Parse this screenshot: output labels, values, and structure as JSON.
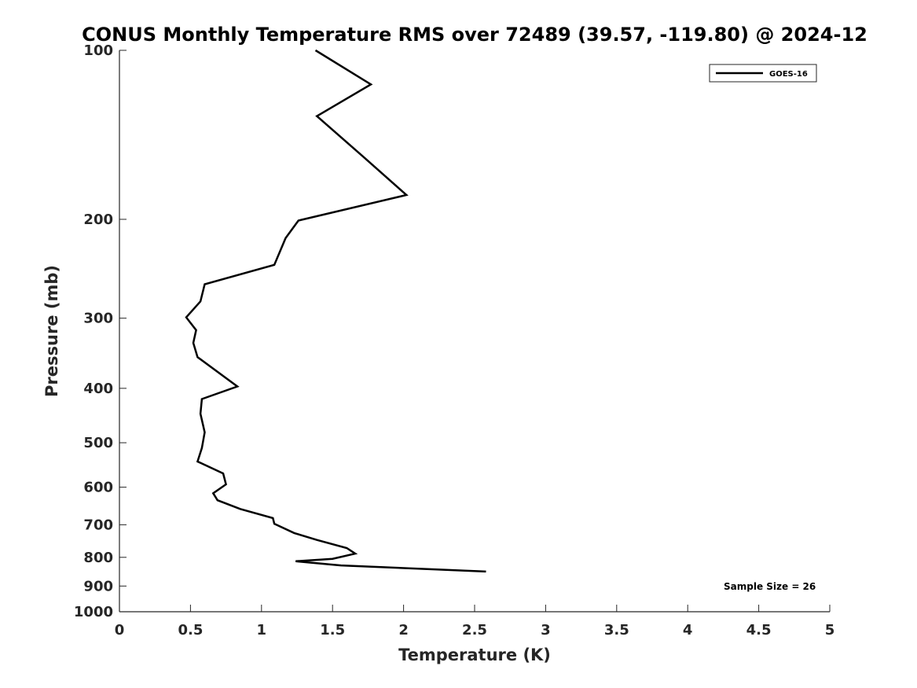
{
  "chart_data": {
    "type": "line",
    "title": "CONUS Monthly Temperature RMS over 72489 (39.57, -119.80) @ 2024-12",
    "xlabel": "Temperature (K)",
    "ylabel": "Pressure (mb)",
    "xlim": [
      0,
      5
    ],
    "ylim": [
      100,
      1000
    ],
    "y_scale": "log",
    "y_reversed": true,
    "x_ticks": [
      "0",
      "0.5",
      "1",
      "1.5",
      "2",
      "2.5",
      "3",
      "3.5",
      "4",
      "4.5",
      "5"
    ],
    "y_ticks": [
      "100",
      "200",
      "300",
      "400",
      "500",
      "600",
      "700",
      "800",
      "900",
      "1000"
    ],
    "grid": false,
    "legend_position": "top-right",
    "annotation": "Sample Size = 26",
    "series": [
      {
        "name": "GOES-16",
        "color": "#000000",
        "points": [
          [
            1.38,
            100
          ],
          [
            1.77,
            115
          ],
          [
            1.39,
            131
          ],
          [
            1.72,
            155
          ],
          [
            2.02,
            181
          ],
          [
            1.26,
            201
          ],
          [
            1.17,
            216
          ],
          [
            1.09,
            241
          ],
          [
            0.6,
            261
          ],
          [
            0.57,
            280
          ],
          [
            0.47,
            299
          ],
          [
            0.54,
            315
          ],
          [
            0.52,
            332
          ],
          [
            0.55,
            352
          ],
          [
            0.83,
            397
          ],
          [
            0.58,
            418
          ],
          [
            0.57,
            444
          ],
          [
            0.6,
            479
          ],
          [
            0.58,
            511
          ],
          [
            0.55,
            540
          ],
          [
            0.73,
            567
          ],
          [
            0.75,
            593
          ],
          [
            0.66,
            615
          ],
          [
            0.69,
            633
          ],
          [
            0.85,
            656
          ],
          [
            1.08,
            681
          ],
          [
            1.09,
            697
          ],
          [
            1.23,
            724
          ],
          [
            1.39,
            745
          ],
          [
            1.6,
            770
          ],
          [
            1.66,
            788
          ],
          [
            1.5,
            805
          ],
          [
            1.24,
            813
          ],
          [
            1.56,
            827
          ],
          [
            2.58,
            848
          ]
        ]
      }
    ]
  }
}
